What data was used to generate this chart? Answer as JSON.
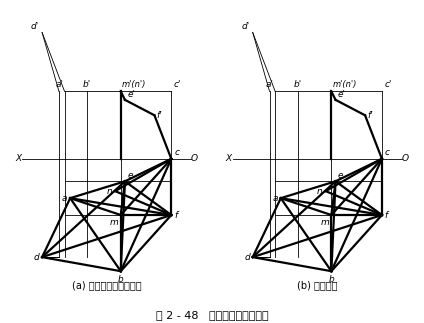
{
  "title": "图 2 - 48   水平面与正垂面相交",
  "subtitle_a": "(a) 已知条件和作图过程",
  "subtitle_b": "(b) 作图结果",
  "bg_color": "#ffffff",
  "line_color": "#000000",
  "thick_lw": 1.6,
  "thin_lw": 0.6,
  "font_size_label": 6.5,
  "font_size_sub": 7.0,
  "font_size_title": 8.0
}
